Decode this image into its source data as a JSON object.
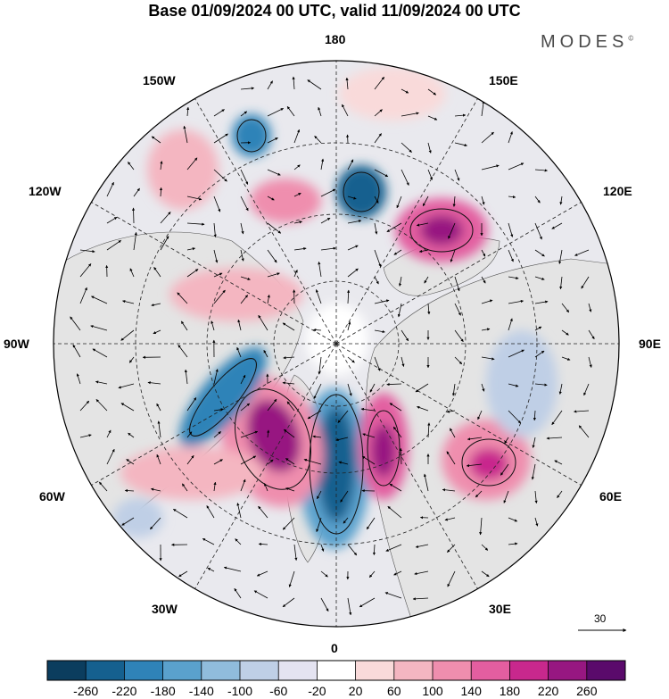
{
  "title": "Base 01/09/2024 00 UTC, valid 11/09/2024 00 UTC",
  "brand": {
    "name": "MODES",
    "mark": "©"
  },
  "longitude_labels": {
    "top": "180",
    "bottom": "0",
    "left": "90W",
    "right": "90E",
    "upper_left": "150W",
    "upper_right": "150E",
    "mid_left": "120W",
    "mid_right": "120E",
    "lower_left": "60W",
    "lower_right": "60E",
    "bottom_left": "30W",
    "bottom_right": "30E"
  },
  "colorbar": {
    "ticks": [
      "-260",
      "-220",
      "-180",
      "-140",
      "-100",
      "-60",
      "-20",
      "20",
      "60",
      "100",
      "140",
      "180",
      "220",
      "260"
    ],
    "colors": [
      "#0b3d5e",
      "#15608f",
      "#2f83b8",
      "#5aa1cd",
      "#90bcdc",
      "#bfcfe6",
      "#e4e3f1",
      "#ffffff",
      "#f9dada",
      "#f4b6c1",
      "#ef8eae",
      "#e35ea0",
      "#c8288d",
      "#971781",
      "#5a0a6b"
    ]
  },
  "vector_reference": {
    "label": "30"
  },
  "map": {
    "projection": "north polar stereographic",
    "land_color": "#e6e6e6",
    "ocean_color": "#ffffff"
  }
}
